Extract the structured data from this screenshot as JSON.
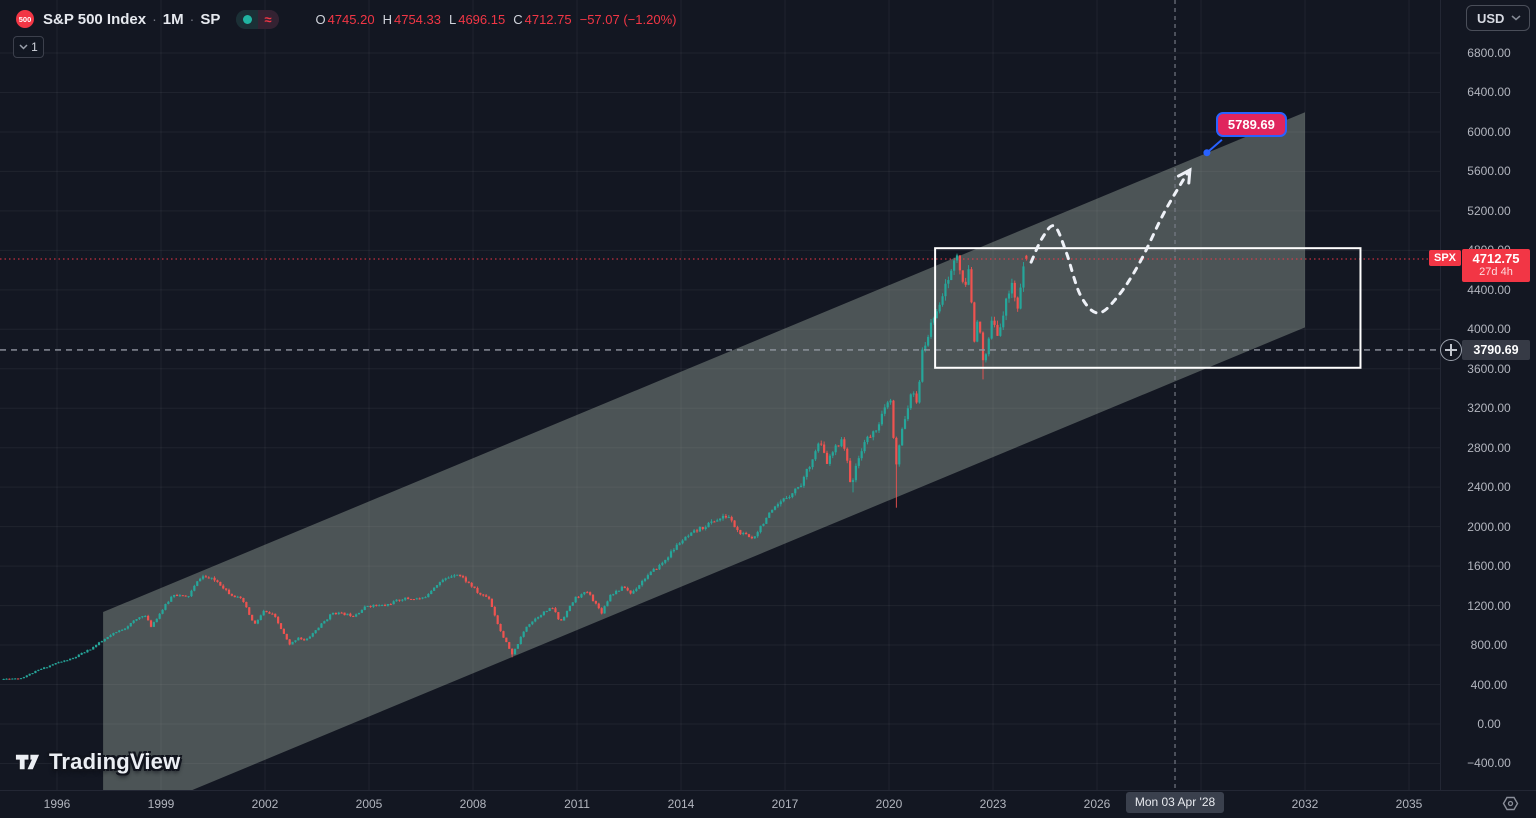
{
  "header": {
    "symbol_badge": "500",
    "title": "S&P 500 Index",
    "separator": "·",
    "interval": "1M",
    "exchange": "SP",
    "status_approx": "≈",
    "ohlc": {
      "o_label": "O",
      "o": "4745.20",
      "h_label": "H",
      "h": "4754.33",
      "l_label": "L",
      "l": "4696.15",
      "c_label": "C",
      "c": "4712.75",
      "change": "−57.07 (−1.20%)"
    },
    "collapse_count": "1"
  },
  "watermark": {
    "brand": "TradingView"
  },
  "price_scale": {
    "currency_button": "USD",
    "ticks": [
      {
        "label": "6800.00",
        "value": 6800
      },
      {
        "label": "6400.00",
        "value": 6400
      },
      {
        "label": "6000.00",
        "value": 6000
      },
      {
        "label": "5600.00",
        "value": 5600
      },
      {
        "label": "5200.00",
        "value": 5200
      },
      {
        "label": "4800.00",
        "value": 4800
      },
      {
        "label": "4400.00",
        "value": 4400
      },
      {
        "label": "4000.00",
        "value": 4000
      },
      {
        "label": "3600.00",
        "value": 3600
      },
      {
        "label": "3200.00",
        "value": 3200
      },
      {
        "label": "2800.00",
        "value": 2800
      },
      {
        "label": "2400.00",
        "value": 2400
      },
      {
        "label": "2000.00",
        "value": 2000
      },
      {
        "label": "1600.00",
        "value": 1600
      },
      {
        "label": "1200.00",
        "value": 1200
      },
      {
        "label": "800.00",
        "value": 800
      },
      {
        "label": "400.00",
        "value": 400
      },
      {
        "label": "0.00",
        "value": 0
      },
      {
        "label": "−400.00",
        "value": -400
      }
    ],
    "last_price_label": {
      "symbol": "SPX",
      "price": "4712.75",
      "countdown": "27d 4h"
    },
    "crosshair_price": "3790.69"
  },
  "time_scale": {
    "ticks": [
      {
        "label": "1996",
        "year": 1996
      },
      {
        "label": "1999",
        "year": 1999
      },
      {
        "label": "2002",
        "year": 2002
      },
      {
        "label": "2005",
        "year": 2005
      },
      {
        "label": "2008",
        "year": 2008
      },
      {
        "label": "2011",
        "year": 2011
      },
      {
        "label": "2014",
        "year": 2014
      },
      {
        "label": "2017",
        "year": 2017
      },
      {
        "label": "2020",
        "year": 2020
      },
      {
        "label": "2023",
        "year": 2023
      },
      {
        "label": "2026",
        "year": 2026
      },
      {
        "label": "2032",
        "year": 2032
      },
      {
        "label": "2035",
        "year": 2035
      }
    ],
    "grid": {
      "start": 1996,
      "end": 2035,
      "step": 3
    },
    "crosshair_date": "Mon 03 Apr '28"
  },
  "drawings": {
    "channel": {
      "year_start": 1997.33,
      "price_start_top": 1135,
      "year_end": 2032.0,
      "price_end_top": 6200,
      "width_points": 2180
    },
    "rectangle": {
      "year_start": 2021.33,
      "price_top": 4822,
      "year_end": 2033.6,
      "price_bottom": 3610
    },
    "crosshair": {
      "price": 3790.69,
      "year": 2028.25
    },
    "projection_curve": {
      "points": [
        [
          2024.1,
          4681
        ],
        [
          2024.42,
          4925
        ],
        [
          2024.77,
          5046
        ],
        [
          2025.11,
          4783
        ],
        [
          2025.52,
          4347
        ],
        [
          2026.03,
          4165
        ],
        [
          2026.61,
          4337
        ],
        [
          2027.24,
          4681
        ],
        [
          2027.9,
          5158
        ],
        [
          2028.45,
          5492
        ],
        [
          2028.68,
          5614
        ]
      ]
    },
    "price_note": {
      "text": "5789.69",
      "year": 2029.17,
      "price": 5789.69
    }
  },
  "chart_data": {
    "type": "candlestick",
    "title": "S&P 500 Index · 1M · SP",
    "symbol": "S&P 500 Index",
    "exchange": "SP",
    "interval": "1M",
    "currency": "USD",
    "x_axis": {
      "start_year": 1994.42,
      "end_year": 2024.0,
      "visible_end_year": 2036.6
    },
    "y_axis": {
      "min": -400,
      "max": 6800,
      "step": 400
    },
    "ohlc_current": {
      "open": 4745.2,
      "high": 4754.33,
      "low": 4696.15,
      "close": 4712.75,
      "change": -57.07,
      "change_pct": -1.2
    },
    "price_keypoints": [
      [
        1994.42,
        455
      ],
      [
        1995.0,
        465
      ],
      [
        1995.5,
        545
      ],
      [
        1996.0,
        615
      ],
      [
        1996.5,
        665
      ],
      [
        1997.0,
        760
      ],
      [
        1997.6,
        900
      ],
      [
        1998.0,
        975
      ],
      [
        1998.55,
        1115
      ],
      [
        1998.75,
        990
      ],
      [
        1999.4,
        1320
      ],
      [
        1999.8,
        1280
      ],
      [
        2000.2,
        1500
      ],
      [
        2000.65,
        1450
      ],
      [
        2001.0,
        1330
      ],
      [
        2001.4,
        1250
      ],
      [
        2001.73,
        1000
      ],
      [
        2002.0,
        1140
      ],
      [
        2002.3,
        1100
      ],
      [
        2002.75,
        800
      ],
      [
        2003.0,
        880
      ],
      [
        2003.2,
        840
      ],
      [
        2004.0,
        1130
      ],
      [
        2004.6,
        1100
      ],
      [
        2005.0,
        1200
      ],
      [
        2005.5,
        1200
      ],
      [
        2006.0,
        1270
      ],
      [
        2006.6,
        1270
      ],
      [
        2007.0,
        1420
      ],
      [
        2007.55,
        1530
      ],
      [
        2007.75,
        1480
      ],
      [
        2008.0,
        1400
      ],
      [
        2008.2,
        1320
      ],
      [
        2008.5,
        1280
      ],
      [
        2008.8,
        970
      ],
      [
        2009.17,
        700
      ],
      [
        2009.6,
        1000
      ],
      [
        2010.0,
        1115
      ],
      [
        2010.35,
        1180
      ],
      [
        2010.55,
        1030
      ],
      [
        2011.0,
        1280
      ],
      [
        2011.35,
        1340
      ],
      [
        2011.75,
        1130
      ],
      [
        2012.0,
        1310
      ],
      [
        2012.4,
        1390
      ],
      [
        2012.6,
        1320
      ],
      [
        2013.0,
        1480
      ],
      [
        2013.5,
        1630
      ],
      [
        2014.0,
        1840
      ],
      [
        2014.5,
        1960
      ],
      [
        2015.0,
        2060
      ],
      [
        2015.4,
        2110
      ],
      [
        2015.7,
        1940
      ],
      [
        2016.1,
        1880
      ],
      [
        2016.5,
        2090
      ],
      [
        2017.0,
        2270
      ],
      [
        2017.5,
        2430
      ],
      [
        2018.04,
        2860
      ],
      [
        2018.25,
        2650
      ],
      [
        2018.7,
        2910
      ],
      [
        2018.95,
        2420
      ],
      [
        2019.3,
        2850
      ],
      [
        2019.6,
        2950
      ],
      [
        2020.08,
        3300
      ],
      [
        2020.16,
        2950
      ],
      [
        2020.22,
        2550
      ],
      [
        2020.45,
        3050
      ],
      [
        2020.7,
        3350
      ],
      [
        2020.85,
        3270
      ],
      [
        2021.0,
        3750
      ],
      [
        2021.4,
        4200
      ],
      [
        2021.7,
        4450
      ],
      [
        2022.0,
        4770
      ],
      [
        2022.2,
        4380
      ],
      [
        2022.35,
        4600
      ],
      [
        2022.5,
        3900
      ],
      [
        2022.6,
        4150
      ],
      [
        2022.78,
        3590
      ],
      [
        2023.0,
        4080
      ],
      [
        2023.15,
        3950
      ],
      [
        2023.35,
        4170
      ],
      [
        2023.58,
        4510
      ],
      [
        2023.75,
        4180
      ],
      [
        2023.88,
        4560
      ],
      [
        2024.0,
        4712.75
      ]
    ],
    "wick_overrides": [
      {
        "year": 2009.08,
        "low": 676
      },
      {
        "year": 2018.9,
        "low": 2347
      },
      {
        "year": 2020.15,
        "low": 2192
      },
      {
        "year": 2022.7,
        "low": 3492
      }
    ]
  },
  "colors": {
    "bg": "#131722",
    "grid": "rgba(255,255,255,0.055)",
    "axis_text": "#b2b5be",
    "up": "#26a69a",
    "down": "#ef5350",
    "last_price": "#f23645",
    "channel_fill": "rgba(171,185,172,0.38)",
    "rectangle_stroke": "#ffffff",
    "projection": "#eef1f7",
    "crosshair": "#9196a1",
    "note_border": "#2962ff",
    "note_bg": "#e0255e"
  }
}
